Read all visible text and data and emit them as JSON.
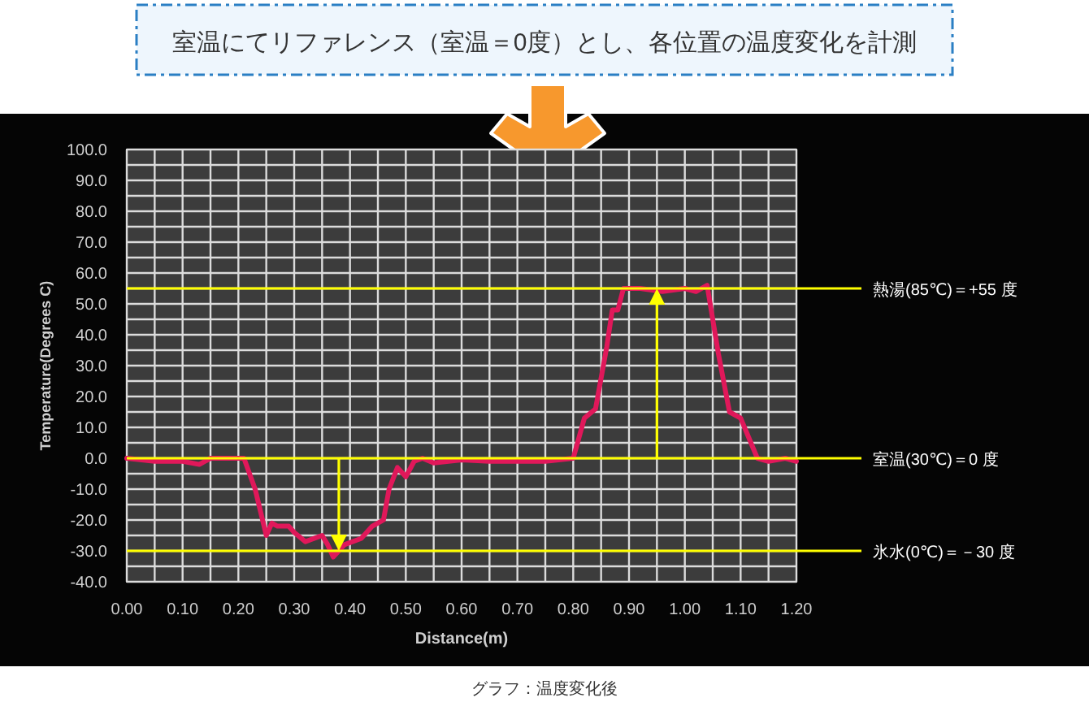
{
  "chart_data": {
    "type": "line",
    "title": "室温にてリファレンス（室温＝0度）とし、各位置の温度変化を計測",
    "xlabel": "Distance(m)",
    "ylabel": "Temperature(Degrees C)",
    "xlim": [
      0,
      1.2
    ],
    "ylim": [
      -40,
      100
    ],
    "xticks": [
      {
        "value": 0,
        "label": "0.00"
      },
      {
        "value": 0.05,
        "label": null
      },
      {
        "value": 0.1,
        "label": "0.10"
      },
      {
        "value": 0.15,
        "label": null
      },
      {
        "value": 0.2,
        "label": "0.20"
      },
      {
        "value": 0.25,
        "label": null
      },
      {
        "value": 0.3,
        "label": "0.30"
      },
      {
        "value": 0.35,
        "label": null
      },
      {
        "value": 0.4,
        "label": "0.40"
      },
      {
        "value": 0.45,
        "label": null
      },
      {
        "value": 0.5,
        "label": "0.50"
      },
      {
        "value": 0.55,
        "label": null
      },
      {
        "value": 0.6,
        "label": "0.60"
      },
      {
        "value": 0.65,
        "label": null
      },
      {
        "value": 0.7,
        "label": "0.70"
      },
      {
        "value": 0.75,
        "label": null
      },
      {
        "value": 0.8,
        "label": "0.80"
      },
      {
        "value": 0.85,
        "label": null
      },
      {
        "value": 0.9,
        "label": "0.90"
      },
      {
        "value": 0.95,
        "label": null
      },
      {
        "value": 1.0,
        "label": "1.00"
      },
      {
        "value": 1.05,
        "label": null
      },
      {
        "value": 1.1,
        "label": "1.10"
      },
      {
        "value": 1.15,
        "label": null
      },
      {
        "value": 1.2,
        "label": "1.20"
      }
    ],
    "yticks": [
      {
        "value": -40,
        "label": "-40.0"
      },
      {
        "value": -35,
        "label": null
      },
      {
        "value": -30,
        "label": "-30.0"
      },
      {
        "value": -25,
        "label": null
      },
      {
        "value": -20,
        "label": "-20.0"
      },
      {
        "value": -15,
        "label": null
      },
      {
        "value": -10,
        "label": "-10.0"
      },
      {
        "value": -5,
        "label": null
      },
      {
        "value": 0,
        "label": "0.0"
      },
      {
        "value": 5,
        "label": null
      },
      {
        "value": 10,
        "label": "10.0"
      },
      {
        "value": 15,
        "label": null
      },
      {
        "value": 20,
        "label": "20.0"
      },
      {
        "value": 25,
        "label": null
      },
      {
        "value": 30,
        "label": "30.0"
      },
      {
        "value": 35,
        "label": null
      },
      {
        "value": 40,
        "label": "40.0"
      },
      {
        "value": 45,
        "label": null
      },
      {
        "value": 50,
        "label": "50.0"
      },
      {
        "value": 55,
        "label": null
      },
      {
        "value": 60,
        "label": "60.0"
      },
      {
        "value": 65,
        "label": null
      },
      {
        "value": 70,
        "label": "70.0"
      },
      {
        "value": 75,
        "label": null
      },
      {
        "value": 80,
        "label": "80.0"
      },
      {
        "value": 85,
        "label": null
      },
      {
        "value": 90,
        "label": "90.0"
      },
      {
        "value": 95,
        "label": null
      },
      {
        "value": 100,
        "label": "100.0"
      }
    ],
    "grid": true,
    "series": [
      {
        "color": "#e0185a",
        "x": [
          0,
          0.05,
          0.1,
          0.13,
          0.15,
          0.19,
          0.21,
          0.23,
          0.25,
          0.26,
          0.27,
          0.29,
          0.3,
          0.32,
          0.35,
          0.36,
          0.37,
          0.39,
          0.42,
          0.44,
          0.46,
          0.47,
          0.485,
          0.5,
          0.515,
          0.53,
          0.55,
          0.6,
          0.65,
          0.7,
          0.75,
          0.8,
          0.82,
          0.84,
          0.86,
          0.87,
          0.88,
          0.89,
          0.92,
          0.96,
          1.0,
          1.02,
          1.04,
          1.06,
          1.08,
          1.1,
          1.13,
          1.15,
          1.18,
          1.2
        ],
        "values": [
          0,
          -1,
          -1,
          -2,
          0,
          0,
          0,
          -10,
          -25,
          -21,
          -22,
          -22,
          -24,
          -27,
          -25,
          -28,
          -32,
          -28,
          -26,
          -22,
          -20,
          -10,
          -3,
          -6,
          -1,
          0,
          -1.5,
          -0.5,
          -1,
          -1,
          -1,
          0,
          13,
          16,
          36,
          48,
          48,
          55,
          55,
          54,
          55,
          54,
          56,
          34,
          15,
          13,
          0,
          -1,
          0,
          -1
        ]
      }
    ],
    "line_style": "solid",
    "marker": "none",
    "ref_lines": [
      {
        "axis": "y",
        "value": 55,
        "label": "熱湯(85℃)＝+55 度",
        "color": "#ffff00"
      },
      {
        "axis": "y",
        "value": 0,
        "label": "室温(30℃)＝0 度",
        "color": "#ffff00"
      },
      {
        "axis": "y",
        "value": -30,
        "label": "氷水(0℃)＝－30 度",
        "color": "#ffff00"
      }
    ],
    "annotations": [
      "グラフ：温度変化後"
    ]
  }
}
